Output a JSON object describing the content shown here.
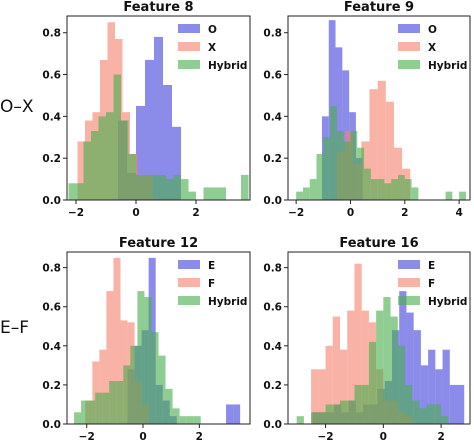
{
  "row_labels": [
    "O–X",
    "E–F"
  ],
  "colors": {
    "series1": "#4444dd",
    "series2": "#f38370",
    "series3": "#4caf50"
  },
  "chart_data": [
    {
      "type": "histogram",
      "title": "Feature 8",
      "xlim": [
        -2.3,
        3.8
      ],
      "ylim": [
        0,
        0.88
      ],
      "xticks": [
        -2,
        0,
        2
      ],
      "yticks": [
        0.0,
        0.2,
        0.4,
        0.6,
        0.8
      ],
      "legend_position": "top-right",
      "series": [
        {
          "name": "O",
          "color": "#4444dd",
          "bin_edges": [
            -0.6,
            -0.3,
            0.0,
            0.3,
            0.6,
            0.9,
            1.2,
            1.5
          ],
          "values": [
            0.38,
            0.13,
            0.45,
            0.67,
            0.78,
            0.55,
            0.35
          ]
        },
        {
          "name": "X",
          "color": "#f38370",
          "bin_edges": [
            -1.95,
            -1.7,
            -1.45,
            -1.2,
            -0.95,
            -0.7,
            -0.45,
            -0.2,
            0.05,
            0.3,
            0.55
          ],
          "values": [
            0.28,
            0.38,
            0.42,
            0.67,
            0.85,
            0.77,
            0.42,
            0.22,
            0.12,
            0.12
          ]
        },
        {
          "name": "Hybrid",
          "color": "#4caf50",
          "bin_edges": [
            -2.25,
            -2.0,
            -1.75,
            -1.5,
            -1.25,
            -1.0,
            -0.75,
            -0.5,
            -0.25,
            0.0,
            0.25,
            0.5,
            0.75,
            1.0,
            1.25,
            1.5,
            1.75,
            2.0,
            2.25,
            2.5,
            2.75,
            3.0,
            3.25,
            3.5,
            3.75
          ],
          "values": [
            0.08,
            0.08,
            0.28,
            0.33,
            0.4,
            0.42,
            0.6,
            0.38,
            0.22,
            0.12,
            0.12,
            0.12,
            0.12,
            0.1,
            0.12,
            0.1,
            0.04,
            0.0,
            0.06,
            0.06,
            0.06,
            0.0,
            0.0,
            0.12
          ]
        }
      ]
    },
    {
      "type": "histogram",
      "title": "Feature 9",
      "xlim": [
        -2.3,
        4.4
      ],
      "ylim": [
        0,
        0.88
      ],
      "xticks": [
        -2,
        0,
        2,
        4
      ],
      "yticks": [
        0.0,
        0.2,
        0.4,
        0.6,
        0.8
      ],
      "legend_position": "top-right",
      "series": [
        {
          "name": "O",
          "color": "#4444dd",
          "bin_edges": [
            -1.05,
            -0.8,
            -0.55,
            -0.3,
            -0.05,
            0.2,
            0.45
          ],
          "values": [
            0.4,
            0.86,
            0.73,
            0.62,
            0.42,
            0.2
          ]
        },
        {
          "name": "X",
          "color": "#f38370",
          "bin_edges": [
            -0.5,
            -0.2,
            0.1,
            0.4,
            0.7,
            1.0,
            1.3,
            1.6,
            1.9,
            2.2
          ],
          "values": [
            0.23,
            0.33,
            0.17,
            0.28,
            0.53,
            0.57,
            0.47,
            0.25,
            0.15
          ]
        },
        {
          "name": "Hybrid",
          "color": "#4caf50",
          "bin_edges": [
            -2.0,
            -1.75,
            -1.5,
            -1.25,
            -1.0,
            -0.75,
            -0.5,
            -0.25,
            0.0,
            0.25,
            0.5,
            0.75,
            1.0,
            1.25,
            1.5,
            1.75,
            2.0,
            2.25,
            2.5,
            2.75,
            3.0,
            3.25,
            3.5,
            3.75,
            4.0,
            4.25
          ],
          "values": [
            0.04,
            0.06,
            0.1,
            0.22,
            0.3,
            0.45,
            0.33,
            0.28,
            0.33,
            0.25,
            0.15,
            0.1,
            0.1,
            0.08,
            0.1,
            0.12,
            0.1,
            0.06,
            0.0,
            0.0,
            0.0,
            0.0,
            0.04,
            0.0,
            0.04
          ]
        }
      ]
    },
    {
      "type": "histogram",
      "title": "Feature 12",
      "xlim": [
        -2.7,
        3.8
      ],
      "ylim": [
        0,
        0.88
      ],
      "xticks": [
        -2,
        0,
        2
      ],
      "yticks": [
        0.0,
        0.2,
        0.4,
        0.6,
        0.8
      ],
      "legend_position": "top-right",
      "series": [
        {
          "name": "E",
          "color": "#4444dd",
          "bin_edges": [
            -0.55,
            -0.3,
            -0.05,
            0.2,
            0.45,
            0.7,
            0.95,
            1.2,
            1.45,
            1.7,
            1.95,
            2.2,
            2.45,
            2.7,
            2.95,
            3.2,
            3.45
          ],
          "values": [
            0.28,
            0.4,
            0.48,
            0.85,
            0.2,
            0.12,
            0.04,
            0.0,
            0.0,
            0.0,
            0.0,
            0.0,
            0.0,
            0.0,
            0.1,
            0.1
          ]
        },
        {
          "name": "F",
          "color": "#f38370",
          "bin_edges": [
            -2.05,
            -1.8,
            -1.55,
            -1.3,
            -1.05,
            -0.8,
            -0.55,
            -0.3,
            -0.05,
            0.2
          ],
          "values": [
            0.12,
            0.32,
            0.38,
            0.68,
            0.85,
            0.53,
            0.52,
            0.22,
            0.1
          ]
        },
        {
          "name": "Hybrid",
          "color": "#4caf50",
          "bin_edges": [
            -2.45,
            -2.2,
            -1.95,
            -1.7,
            -1.45,
            -1.2,
            -0.95,
            -0.7,
            -0.45,
            -0.2,
            0.05,
            0.3,
            0.55,
            0.8,
            1.05,
            1.3,
            1.55,
            1.8,
            2.05
          ],
          "values": [
            0.06,
            0.12,
            0.12,
            0.16,
            0.16,
            0.22,
            0.22,
            0.3,
            0.4,
            0.68,
            0.65,
            0.47,
            0.35,
            0.18,
            0.08,
            0.04,
            0.04,
            0.04
          ]
        }
      ]
    },
    {
      "type": "histogram",
      "title": "Feature 16",
      "xlim": [
        -3.3,
        3.0
      ],
      "ylim": [
        0,
        0.88
      ],
      "xticks": [
        -2,
        0,
        2
      ],
      "yticks": [
        0.0,
        0.2,
        0.4,
        0.6,
        0.8
      ],
      "legend_position": "top-right",
      "series": [
        {
          "name": "E",
          "color": "#4444dd",
          "bin_edges": [
            -2.45,
            -2.2,
            -1.95,
            -1.7,
            -1.45,
            -1.2,
            -0.95,
            -0.7,
            -0.45,
            -0.2,
            0.05,
            0.3,
            0.55,
            0.8,
            1.05,
            1.3,
            1.55,
            1.8,
            2.05,
            2.3,
            2.55,
            2.8
          ],
          "values": [
            0.06,
            0.06,
            0.06,
            0.1,
            0.06,
            0.12,
            0.06,
            0.1,
            0.1,
            0.18,
            0.22,
            0.48,
            0.68,
            0.57,
            0.48,
            0.3,
            0.38,
            0.28,
            0.38,
            0.2,
            0.2
          ]
        },
        {
          "name": "F",
          "color": "#f38370",
          "bin_edges": [
            -2.5,
            -2.25,
            -2.0,
            -1.75,
            -1.5,
            -1.25,
            -1.0,
            -0.75,
            -0.5,
            -0.25,
            0.0,
            0.25,
            0.5,
            0.75,
            1.0
          ],
          "values": [
            0.28,
            0.28,
            0.4,
            0.55,
            0.38,
            0.58,
            0.82,
            0.58,
            0.52,
            0.28,
            0.12,
            0.12,
            0.06,
            0.04
          ]
        },
        {
          "name": "Hybrid",
          "color": "#4caf50",
          "bin_edges": [
            -3.0,
            -2.75,
            -2.5,
            -2.25,
            -2.0,
            -1.75,
            -1.5,
            -1.25,
            -1.0,
            -0.75,
            -0.5,
            -0.25,
            0.0,
            0.25,
            0.5,
            0.75,
            1.0,
            1.25,
            1.5,
            1.75,
            2.0,
            2.25
          ],
          "values": [
            0.04,
            0.0,
            0.06,
            0.06,
            0.1,
            0.1,
            0.12,
            0.12,
            0.2,
            0.2,
            0.42,
            0.58,
            0.65,
            0.55,
            0.4,
            0.2,
            0.12,
            0.08,
            0.1,
            0.1,
            0.04
          ]
        }
      ]
    }
  ]
}
